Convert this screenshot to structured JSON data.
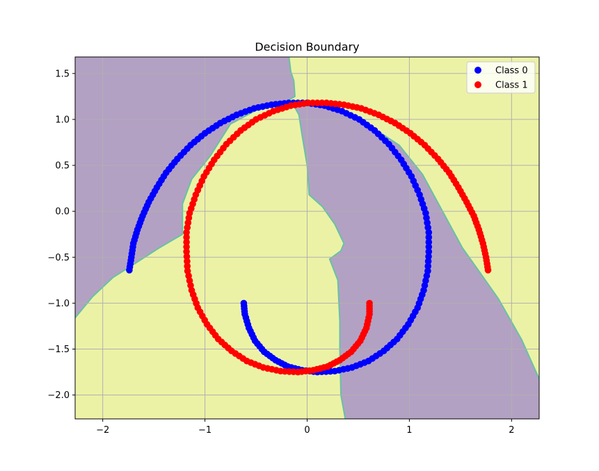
{
  "chart_data": {
    "type": "scatter",
    "title": "Decision Boundary",
    "xlabel": "",
    "ylabel": "",
    "xlim": [
      -2.27,
      2.27
    ],
    "ylim": [
      -2.26,
      1.68
    ],
    "grid": true,
    "legend_position": "top-right",
    "x_ticks": [
      -2,
      -1,
      0,
      1,
      2
    ],
    "x_tick_labels": [
      "−2",
      "−1",
      "0",
      "1",
      "2"
    ],
    "y_ticks": [
      1.5,
      1.0,
      0.5,
      0.0,
      -0.5,
      -1.0,
      -1.5,
      -2.0
    ],
    "y_tick_labels": [
      "1.5",
      "1.0",
      "0.5",
      "0.0",
      "−0.5",
      "−1.0",
      "−1.5",
      "−2.0"
    ],
    "region_colors": {
      "class_0": "#b3a1c3",
      "class_1": "#ecf2a5",
      "boundary": "#66c2a5"
    },
    "series": [
      {
        "name": "Class 0",
        "color": "#0000ff",
        "points": [
          [
            -1.74,
            -0.64
          ],
          [
            -1.72,
            -0.5
          ],
          [
            -1.7,
            -0.35
          ],
          [
            -1.66,
            -0.2
          ],
          [
            -1.61,
            -0.05
          ],
          [
            -1.55,
            0.1
          ],
          [
            -1.47,
            0.26
          ],
          [
            -1.38,
            0.42
          ],
          [
            -1.27,
            0.57
          ],
          [
            -1.14,
            0.72
          ],
          [
            -1.0,
            0.85
          ],
          [
            -0.85,
            0.96
          ],
          [
            -0.69,
            1.05
          ],
          [
            -0.52,
            1.12
          ],
          [
            -0.35,
            1.16
          ],
          [
            -0.18,
            1.18
          ],
          [
            0.0,
            1.18
          ],
          [
            0.17,
            1.15
          ],
          [
            0.34,
            1.09
          ],
          [
            0.51,
            1.0
          ],
          [
            0.66,
            0.88
          ],
          [
            0.8,
            0.73
          ],
          [
            0.92,
            0.56
          ],
          [
            1.02,
            0.38
          ],
          [
            1.1,
            0.18
          ],
          [
            1.16,
            -0.02
          ],
          [
            1.19,
            -0.23
          ],
          [
            1.19,
            -0.44
          ],
          [
            1.18,
            -0.65
          ],
          [
            1.14,
            -0.86
          ],
          [
            1.08,
            -1.05
          ],
          [
            0.99,
            -1.23
          ],
          [
            0.88,
            -1.39
          ],
          [
            0.75,
            -1.52
          ],
          [
            0.6,
            -1.63
          ],
          [
            0.44,
            -1.7
          ],
          [
            0.27,
            -1.74
          ],
          [
            0.1,
            -1.75
          ],
          [
            -0.05,
            -1.73
          ],
          [
            -0.19,
            -1.69
          ],
          [
            -0.31,
            -1.62
          ],
          [
            -0.42,
            -1.53
          ],
          [
            -0.51,
            -1.41
          ],
          [
            -0.57,
            -1.27
          ],
          [
            -0.61,
            -1.12
          ],
          [
            -0.62,
            -1.0
          ]
        ]
      },
      {
        "name": "Class 1",
        "color": "#ff0000",
        "points": [
          [
            1.77,
            -0.64
          ],
          [
            1.75,
            -0.5
          ],
          [
            1.72,
            -0.35
          ],
          [
            1.68,
            -0.2
          ],
          [
            1.63,
            -0.05
          ],
          [
            1.56,
            0.1
          ],
          [
            1.48,
            0.26
          ],
          [
            1.39,
            0.42
          ],
          [
            1.28,
            0.57
          ],
          [
            1.15,
            0.72
          ],
          [
            1.01,
            0.85
          ],
          [
            0.86,
            0.96
          ],
          [
            0.7,
            1.05
          ],
          [
            0.53,
            1.12
          ],
          [
            0.36,
            1.16
          ],
          [
            0.19,
            1.18
          ],
          [
            0.01,
            1.18
          ],
          [
            -0.16,
            1.15
          ],
          [
            -0.33,
            1.09
          ],
          [
            -0.5,
            1.0
          ],
          [
            -0.65,
            0.88
          ],
          [
            -0.79,
            0.73
          ],
          [
            -0.91,
            0.56
          ],
          [
            -1.01,
            0.38
          ],
          [
            -1.09,
            0.18
          ],
          [
            -1.15,
            -0.02
          ],
          [
            -1.18,
            -0.23
          ],
          [
            -1.18,
            -0.44
          ],
          [
            -1.17,
            -0.65
          ],
          [
            -1.13,
            -0.86
          ],
          [
            -1.07,
            -1.05
          ],
          [
            -0.98,
            -1.23
          ],
          [
            -0.87,
            -1.39
          ],
          [
            -0.74,
            -1.52
          ],
          [
            -0.59,
            -1.63
          ],
          [
            -0.43,
            -1.7
          ],
          [
            -0.26,
            -1.74
          ],
          [
            -0.09,
            -1.75
          ],
          [
            0.06,
            -1.73
          ],
          [
            0.2,
            -1.69
          ],
          [
            0.32,
            -1.62
          ],
          [
            0.43,
            -1.53
          ],
          [
            0.52,
            -1.41
          ],
          [
            0.58,
            -1.27
          ],
          [
            0.61,
            -1.12
          ],
          [
            0.61,
            -1.0
          ]
        ]
      }
    ]
  }
}
